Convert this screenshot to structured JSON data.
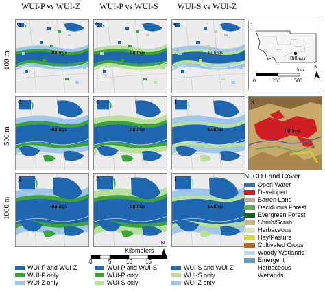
{
  "column_titles": [
    "WUI-P vs WUI-Z",
    "WUI-P vs WUI-S",
    "WUI-S vs WUI-Z"
  ],
  "row_labels": [
    "100 m",
    "500 m",
    "1000 m"
  ],
  "panel_letters": [
    "a",
    "b",
    "c",
    "d",
    "e",
    "f",
    "g",
    "h",
    "i",
    "j",
    "k"
  ],
  "city_label": "Billings",
  "locator_map": {
    "scale_ticks": [
      "0",
      "250",
      "500"
    ],
    "scale_unit": "km",
    "north_label": "N"
  },
  "scalebar": {
    "title": "Kilometers",
    "ticks": [
      "0",
      "5",
      "10",
      "15"
    ]
  },
  "north_label": "N",
  "legends": [
    {
      "items": [
        {
          "label": "WUI-P and WUI-Z",
          "color": "#1f66b0"
        },
        {
          "label": "WUI-P only",
          "color": "#3aa33a"
        },
        {
          "label": "WUI-Z only",
          "color": "#9fc7e8"
        }
      ]
    },
    {
      "items": [
        {
          "label": "WUI-P and WUI-S",
          "color": "#1f66b0"
        },
        {
          "label": "WUI-P only",
          "color": "#3aa33a"
        },
        {
          "label": "WUI-S only",
          "color": "#b7e09a"
        }
      ]
    },
    {
      "items": [
        {
          "label": "WUI-S and WUI-Z",
          "color": "#1f66b0"
        },
        {
          "label": "WUI-S only",
          "color": "#b7e09a"
        },
        {
          "label": "WUI-Z only",
          "color": "#9fc7e8"
        }
      ]
    }
  ],
  "nlcd": {
    "title": "NLCD Land Cover",
    "items": [
      {
        "label": "Open Water",
        "color": "#466b9f"
      },
      {
        "label": "Developed",
        "color": "#d01f24"
      },
      {
        "label": "Barren Land",
        "color": "#b3aca3"
      },
      {
        "label": "Deciduous Forest",
        "color": "#68ab5f"
      },
      {
        "label": "Evergreen Forest",
        "color": "#1c5f2c"
      },
      {
        "label": "Shrub/Scrub",
        "color": "#ccb879"
      },
      {
        "label": "Herbaceous",
        "color": "#dfdfc2"
      },
      {
        "label": "Hay/Pasture",
        "color": "#dcd939"
      },
      {
        "label": "Cultivated Crops",
        "color": "#ab6c28"
      },
      {
        "label": "Woody Wetlands",
        "color": "#b8d9eb"
      },
      {
        "label": "Emergent Herbaceous Wetlands",
        "color": "#6c9fb8"
      }
    ]
  },
  "colors": {
    "both": "#1f66b0",
    "p_only": "#3aa33a",
    "s_only": "#b7e09a",
    "z_only": "#9fc7e8",
    "basemap": "#ececec"
  }
}
